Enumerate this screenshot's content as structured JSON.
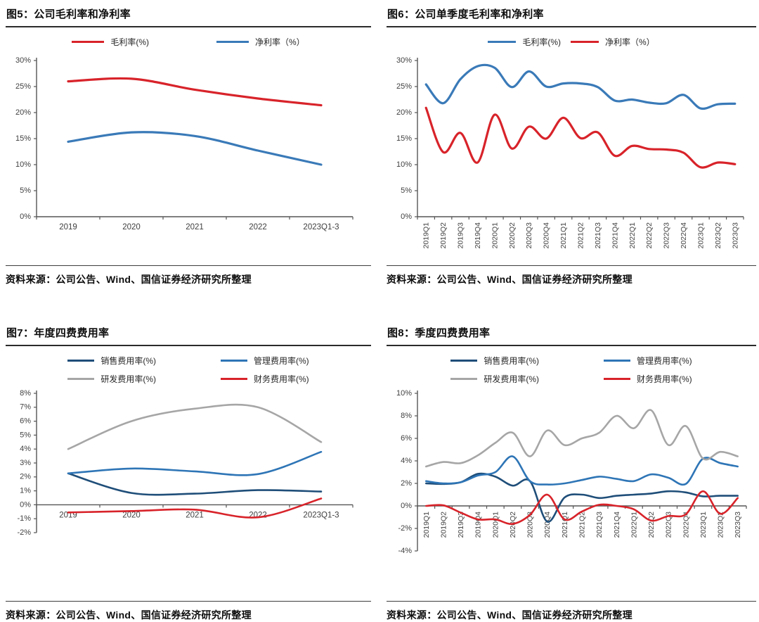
{
  "page": {
    "background": "#ffffff"
  },
  "source_note": "资料来源：公司公告、Wind、国信证券经济研究所整理",
  "palette": {
    "red": "#d8232a",
    "blue": "#3a7ab8",
    "dark_blue": "#1f4e79",
    "light_blue": "#2e75b6",
    "gray": "#a6a6a6",
    "axis": "#555555"
  },
  "chart_data": [
    {
      "type": "line",
      "title": "图5：公司毛利率和净利率",
      "source": "资料来源：公司公告、Wind、国信证券经济研究所整理",
      "categories": [
        "2019",
        "2020",
        "2021",
        "2022",
        "2023Q1-3"
      ],
      "ylim": [
        0,
        30
      ],
      "ytick_step": 5,
      "ytick_suffix": "%",
      "grid": false,
      "legend_position": "top",
      "x_labels_rotated": false,
      "series": [
        {
          "name": "毛利率(%)",
          "color": "#d8232a",
          "values": [
            26.0,
            26.5,
            24.4,
            22.7,
            21.4
          ]
        },
        {
          "name": "净利率（%）",
          "color": "#3a7ab8",
          "values": [
            14.4,
            16.2,
            15.5,
            12.7,
            10.0
          ]
        }
      ]
    },
    {
      "type": "line",
      "title": "图6：公司单季度毛利率和净利率",
      "source": "资料来源：公司公告、Wind、国信证券经济研究所整理",
      "categories": [
        "2019Q1",
        "2019Q2",
        "2019Q3",
        "2019Q4",
        "2020Q1",
        "2020Q2",
        "2020Q3",
        "2020Q4",
        "2021Q1",
        "2021Q2",
        "2021Q3",
        "2021Q4",
        "2022Q1",
        "2022Q2",
        "2022Q3",
        "2022Q4",
        "2023Q1",
        "2023Q2",
        "2023Q3"
      ],
      "ylim": [
        0,
        30
      ],
      "ytick_step": 5,
      "ytick_suffix": "%",
      "grid": false,
      "legend_position": "top",
      "x_labels_rotated": true,
      "series": [
        {
          "name": "毛利率(%)",
          "color": "#3a7ab8",
          "values": [
            25.4,
            21.8,
            26.4,
            28.9,
            28.6,
            24.9,
            27.9,
            25.0,
            25.6,
            25.6,
            24.9,
            22.3,
            22.5,
            21.9,
            21.8,
            23.4,
            20.8,
            21.6,
            21.7
          ]
        },
        {
          "name": "净利率（%）",
          "color": "#d8232a",
          "values": [
            20.9,
            12.4,
            16.1,
            10.4,
            19.6,
            13.1,
            17.3,
            15.0,
            19.0,
            15.1,
            16.2,
            11.7,
            13.6,
            13.0,
            12.9,
            12.3,
            9.5,
            10.4,
            10.1
          ]
        }
      ]
    },
    {
      "type": "line",
      "title": "图7：年度四费费用率",
      "source": "资料来源：公司公告、Wind、国信证券经济研究所整理",
      "categories": [
        "2019",
        "2020",
        "2021",
        "2022",
        "2023Q1-3"
      ],
      "ylim": [
        -2,
        8
      ],
      "ytick_step": 1,
      "ytick_suffix": "%",
      "grid": false,
      "legend_position": "top",
      "x_labels_rotated": false,
      "series": [
        {
          "name": "销售费用率(%)",
          "color": "#1f4e79",
          "values": [
            2.25,
            0.85,
            0.8,
            1.05,
            0.95
          ]
        },
        {
          "name": "管理费用率(%)",
          "color": "#2e75b6",
          "values": [
            2.25,
            2.6,
            2.4,
            2.2,
            3.8
          ]
        },
        {
          "name": "研发费用率(%)",
          "color": "#a6a6a6",
          "values": [
            4.0,
            6.0,
            6.9,
            7.0,
            4.5
          ]
        },
        {
          "name": "财务费用率(%)",
          "color": "#d8232a",
          "values": [
            -0.55,
            -0.45,
            -0.35,
            -0.9,
            0.45
          ]
        }
      ]
    },
    {
      "type": "line",
      "title": "图8：季度四费费用率",
      "source": "资料来源：公司公告、Wind、国信证券经济研究所整理",
      "categories": [
        "2019Q1",
        "2019Q2",
        "2019Q3",
        "2019Q4",
        "2020Q1",
        "2020Q2",
        "2020Q3",
        "2020Q4",
        "2021Q1",
        "2021Q2",
        "2021Q3",
        "2021Q4",
        "2022Q1",
        "2022Q2",
        "2022Q3",
        "2022Q4",
        "2023Q1",
        "2023Q2",
        "2023Q3"
      ],
      "ylim": [
        -4,
        10
      ],
      "ytick_step": 2,
      "ytick_suffix": "%",
      "grid": false,
      "legend_position": "top",
      "x_labels_rotated": true,
      "series": [
        {
          "name": "销售费用率(%)",
          "color": "#1f4e79",
          "values": [
            2.0,
            1.95,
            2.1,
            2.85,
            2.6,
            1.8,
            2.2,
            -1.4,
            0.75,
            1.0,
            0.7,
            0.9,
            1.0,
            1.1,
            1.3,
            1.2,
            0.85,
            0.9,
            0.9
          ]
        },
        {
          "name": "管理费用率(%)",
          "color": "#2e75b6",
          "values": [
            2.2,
            2.0,
            2.1,
            2.7,
            3.0,
            4.4,
            2.2,
            1.9,
            2.0,
            2.3,
            2.6,
            2.4,
            2.2,
            2.8,
            2.5,
            1.95,
            4.2,
            3.8,
            3.5
          ]
        },
        {
          "name": "研发费用率(%)",
          "color": "#a6a6a6",
          "values": [
            3.5,
            3.9,
            3.8,
            4.5,
            5.6,
            6.5,
            4.4,
            6.7,
            5.4,
            6.0,
            6.5,
            8.0,
            6.9,
            8.5,
            5.4,
            7.1,
            4.2,
            4.8,
            4.4
          ]
        },
        {
          "name": "财务费用率(%)",
          "color": "#d8232a",
          "values": [
            0.0,
            0.05,
            -0.6,
            -1.2,
            -1.2,
            -1.6,
            -0.8,
            1.0,
            -1.2,
            -0.5,
            0.1,
            0.0,
            -0.3,
            -1.3,
            -0.9,
            -0.75,
            1.3,
            -0.7,
            0.7
          ]
        }
      ]
    }
  ]
}
